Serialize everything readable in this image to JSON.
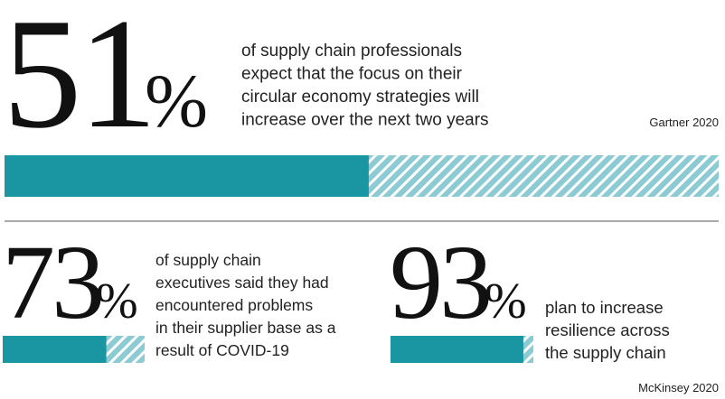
{
  "xlim": [
    0,
    100
  ],
  "stats": [
    {
      "value": 51,
      "symbol": "%",
      "text": [
        "of supply chain professionals",
        "expect that the focus on their",
        "circular economy strategies will",
        "increase over the next two years"
      ],
      "source": "Gartner 2020"
    },
    {
      "value": 73,
      "symbol": "%",
      "text": [
        "of supply chain",
        "executives said they had",
        "encountered problems",
        "in their supplier base as a",
        "result of COVID-19"
      ]
    },
    {
      "value": 93,
      "symbol": "%",
      "text": [
        "plan to increase",
        "resilience across",
        "the supply chain"
      ],
      "source": "McKinsey 2020"
    }
  ]
}
